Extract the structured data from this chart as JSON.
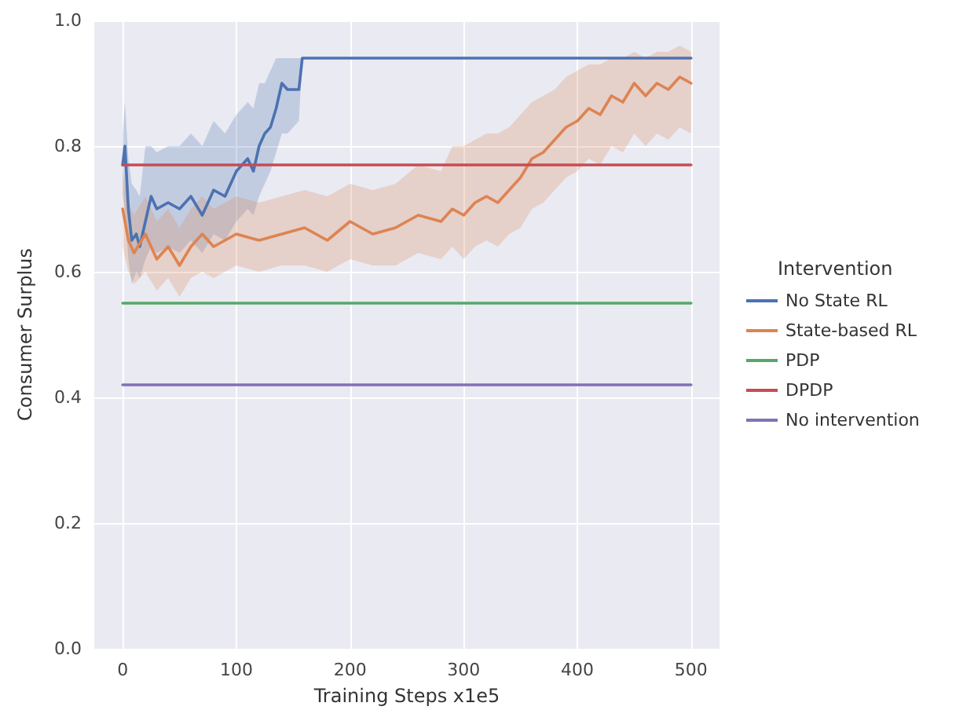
{
  "chart_data": {
    "type": "line",
    "xlabel": "Training Steps x1e5",
    "ylabel": "Consumer Surplus",
    "legend_title": "Intervention",
    "legend": "right",
    "grid": true,
    "line_style": "solid",
    "xlim": [
      -25,
      525
    ],
    "xticks": [
      0,
      100,
      200,
      300,
      400,
      500
    ],
    "ylim": [
      0,
      1
    ],
    "yticks": [
      {
        "value": 0,
        "label": "0.0"
      },
      0.2,
      0.4,
      0.6,
      0.8,
      {
        "value": 1,
        "label": "1.0"
      }
    ],
    "series": [
      {
        "name": "No State RL",
        "color": "#4c72b0",
        "x": [
          0,
          2,
          5,
          8,
          12,
          15,
          20,
          25,
          30,
          40,
          50,
          60,
          70,
          80,
          90,
          100,
          110,
          115,
          120,
          125,
          130,
          135,
          140,
          145,
          150,
          155,
          158,
          500
        ],
        "values": [
          0.77,
          0.8,
          0.7,
          0.65,
          0.66,
          0.64,
          0.68,
          0.72,
          0.7,
          0.71,
          0.7,
          0.72,
          0.69,
          0.73,
          0.72,
          0.76,
          0.78,
          0.76,
          0.8,
          0.82,
          0.83,
          0.86,
          0.9,
          0.89,
          0.89,
          0.89,
          0.94,
          0.94
        ],
        "lower": [
          0.72,
          0.7,
          0.62,
          0.58,
          0.6,
          0.59,
          0.62,
          0.64,
          0.63,
          0.64,
          0.63,
          0.65,
          0.63,
          0.66,
          0.65,
          0.68,
          0.7,
          0.69,
          0.72,
          0.74,
          0.76,
          0.79,
          0.82,
          0.82,
          0.83,
          0.84,
          0.94,
          0.94
        ],
        "upper": [
          0.82,
          0.87,
          0.78,
          0.74,
          0.73,
          0.72,
          0.8,
          0.8,
          0.79,
          0.8,
          0.8,
          0.82,
          0.8,
          0.84,
          0.82,
          0.85,
          0.87,
          0.86,
          0.9,
          0.9,
          0.92,
          0.94,
          0.94,
          0.94,
          0.94,
          0.94,
          0.94,
          0.94
        ]
      },
      {
        "name": "State-based RL",
        "color": "#dd8452",
        "x": [
          0,
          5,
          10,
          20,
          30,
          40,
          50,
          60,
          70,
          80,
          100,
          120,
          140,
          160,
          180,
          200,
          220,
          240,
          260,
          280,
          290,
          300,
          310,
          320,
          330,
          340,
          350,
          360,
          370,
          380,
          390,
          400,
          410,
          420,
          430,
          440,
          450,
          460,
          470,
          480,
          490,
          500
        ],
        "values": [
          0.7,
          0.65,
          0.63,
          0.66,
          0.62,
          0.64,
          0.61,
          0.64,
          0.66,
          0.64,
          0.66,
          0.65,
          0.66,
          0.67,
          0.65,
          0.68,
          0.66,
          0.67,
          0.69,
          0.68,
          0.7,
          0.69,
          0.71,
          0.72,
          0.71,
          0.73,
          0.75,
          0.78,
          0.79,
          0.81,
          0.83,
          0.84,
          0.86,
          0.85,
          0.88,
          0.87,
          0.9,
          0.88,
          0.9,
          0.89,
          0.91,
          0.9
        ],
        "lower": [
          0.64,
          0.6,
          0.58,
          0.6,
          0.57,
          0.59,
          0.56,
          0.59,
          0.6,
          0.59,
          0.61,
          0.6,
          0.61,
          0.61,
          0.6,
          0.62,
          0.61,
          0.61,
          0.63,
          0.62,
          0.64,
          0.62,
          0.64,
          0.65,
          0.64,
          0.66,
          0.67,
          0.7,
          0.71,
          0.73,
          0.75,
          0.76,
          0.78,
          0.77,
          0.8,
          0.79,
          0.82,
          0.8,
          0.82,
          0.81,
          0.83,
          0.82
        ],
        "upper": [
          0.76,
          0.71,
          0.69,
          0.72,
          0.68,
          0.7,
          0.67,
          0.7,
          0.72,
          0.7,
          0.72,
          0.71,
          0.72,
          0.73,
          0.72,
          0.74,
          0.73,
          0.74,
          0.77,
          0.76,
          0.8,
          0.8,
          0.81,
          0.82,
          0.82,
          0.83,
          0.85,
          0.87,
          0.88,
          0.89,
          0.91,
          0.92,
          0.93,
          0.93,
          0.94,
          0.94,
          0.95,
          0.94,
          0.95,
          0.95,
          0.96,
          0.95
        ]
      },
      {
        "name": "PDP",
        "color": "#55a868",
        "x": [
          0,
          500
        ],
        "values": [
          0.55,
          0.55
        ]
      },
      {
        "name": "DPDP",
        "color": "#c44e52",
        "x": [
          0,
          500
        ],
        "values": [
          0.77,
          0.77
        ]
      },
      {
        "name": "No intervention",
        "color": "#8172b3",
        "x": [
          0,
          500
        ],
        "values": [
          0.42,
          0.42
        ]
      }
    ]
  }
}
